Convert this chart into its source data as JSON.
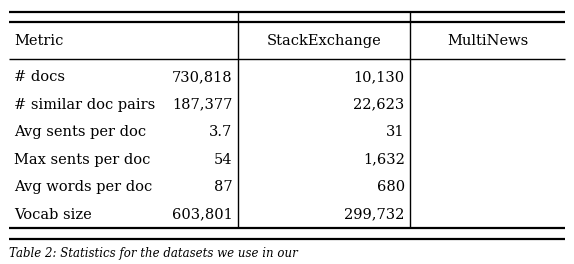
{
  "headers": [
    "Metric",
    "StackExchange",
    "MultiNews"
  ],
  "rows": [
    [
      "# docs",
      "730,818",
      "10,130"
    ],
    [
      "# similar doc pairs",
      "187,377",
      "22,623"
    ],
    [
      "Avg sents per doc",
      "3.7",
      "31"
    ],
    [
      "Max sents per doc",
      "54",
      "1,632"
    ],
    [
      "Avg words per doc",
      "87",
      "680"
    ],
    [
      "Vocab size",
      "603,801",
      "299,732"
    ]
  ],
  "figsize": [
    5.74,
    2.64
  ],
  "dpi": 100,
  "font_size": 10.5,
  "caption_fontsize": 8.5,
  "bg_color": "#ffffff",
  "text_color": "#000000",
  "line_color": "#000000",
  "caption": "Table 2: Statistics for the datasets we use in our"
}
